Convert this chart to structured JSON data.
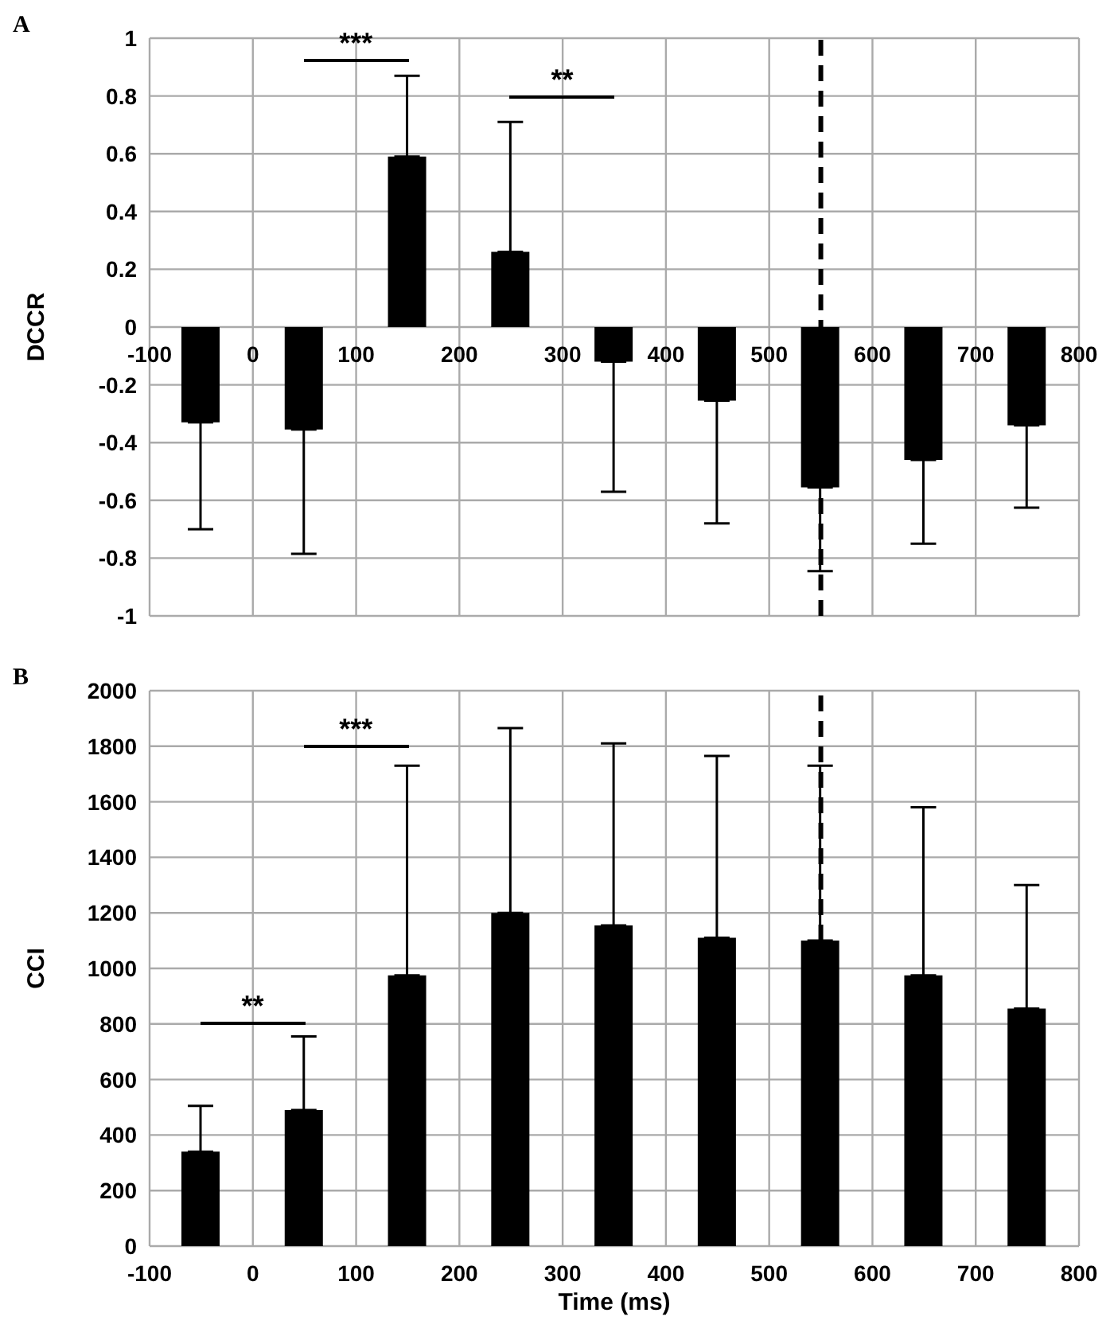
{
  "chart_data": [
    {
      "type": "bar",
      "title": "A",
      "ylabel": "DCCR",
      "x": [
        -50,
        50,
        150,
        250,
        350,
        450,
        550,
        650,
        750
      ],
      "values": [
        -0.33,
        -0.355,
        0.59,
        0.26,
        -0.12,
        -0.255,
        -0.555,
        -0.46,
        -0.34
      ],
      "color": "#000000",
      "errors": [
        [
          -0.7,
          -0.33
        ],
        [
          -0.785,
          -0.355
        ],
        [
          0.59,
          0.87
        ],
        [
          0.26,
          0.71
        ],
        [
          -0.57,
          -0.12
        ],
        [
          -0.68,
          -0.255
        ],
        [
          -0.845,
          -0.555
        ],
        [
          -0.75,
          -0.46
        ],
        [
          -0.625,
          -0.34
        ]
      ],
      "xlim": [
        -100,
        800
      ],
      "xticks": [
        -100,
        0,
        100,
        200,
        300,
        400,
        500,
        600,
        700,
        800
      ],
      "ylim": [
        -1,
        1
      ],
      "yticks": [
        -1,
        -0.8,
        -0.6,
        -0.4,
        -0.2,
        0,
        0.2,
        0.4,
        0.6,
        0.8,
        1
      ],
      "grid": true,
      "ref_lines": [
        {
          "axis": "x",
          "value": 550,
          "color": "#000000",
          "line_style": "dashed"
        }
      ],
      "annotations": [
        "***",
        "**"
      ]
    },
    {
      "type": "bar",
      "title": "B",
      "xlabel": "Time (ms)",
      "ylabel": "CCI",
      "x": [
        -50,
        50,
        150,
        250,
        350,
        450,
        550,
        650,
        750
      ],
      "values": [
        340,
        490,
        975,
        1200,
        1155,
        1110,
        1100,
        975,
        855
      ],
      "color": "#000000",
      "errors": [
        [
          340,
          505
        ],
        [
          490,
          755
        ],
        [
          975,
          1730
        ],
        [
          1200,
          1865
        ],
        [
          1155,
          1810
        ],
        [
          1110,
          1765
        ],
        [
          1100,
          1730
        ],
        [
          975,
          1580
        ],
        [
          855,
          1300
        ]
      ],
      "xlim": [
        -100,
        800
      ],
      "xticks": [
        -100,
        0,
        100,
        200,
        300,
        400,
        500,
        600,
        700,
        800
      ],
      "ylim": [
        0,
        2000
      ],
      "yticks": [
        0,
        200,
        400,
        600,
        800,
        1000,
        1200,
        1400,
        1600,
        1800,
        2000
      ],
      "grid": true,
      "ref_lines": [
        {
          "axis": "x",
          "value": 550,
          "color": "#000000",
          "line_style": "dashed"
        }
      ],
      "annotations": [
        "**",
        "***"
      ]
    }
  ]
}
